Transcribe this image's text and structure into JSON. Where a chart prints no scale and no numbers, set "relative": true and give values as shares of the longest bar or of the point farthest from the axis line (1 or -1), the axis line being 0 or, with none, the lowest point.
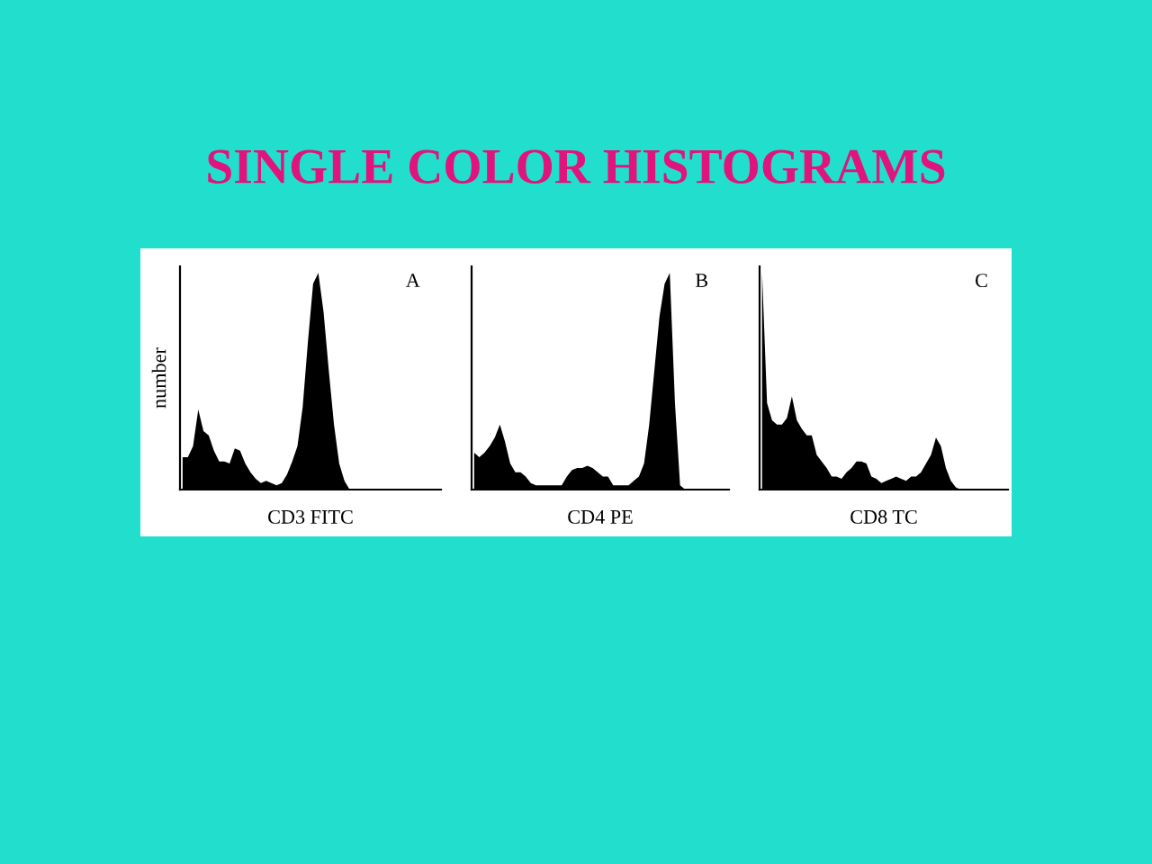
{
  "chart_data": [
    {
      "type": "area",
      "title": "SINGLE COLOR HISTOGRAMS",
      "xlabel": "CD3 FITC",
      "ylabel": "number",
      "annotations": [
        "A"
      ],
      "relative": true,
      "tick_labels": false,
      "legend": false,
      "categories": [
        null,
        null,
        null,
        null,
        null,
        null,
        null,
        null,
        null,
        null,
        null,
        null,
        null,
        null,
        null,
        null,
        null,
        null,
        null,
        null,
        null,
        null,
        null,
        null,
        null,
        null,
        null,
        null,
        null,
        null,
        null,
        null,
        null,
        null,
        null,
        null,
        null,
        null,
        null,
        null,
        null,
        null,
        null,
        null,
        null,
        null,
        null,
        null,
        null,
        null
      ],
      "series": [
        {
          "color": "#000000",
          "values": [
            0.15,
            0.15,
            0.2,
            0.37,
            0.27,
            0.25,
            0.18,
            0.13,
            0.13,
            0.12,
            0.19,
            0.18,
            0.12,
            0.08,
            0.05,
            0.03,
            0.04,
            0.03,
            0.02,
            0.03,
            0.07,
            0.13,
            0.2,
            0.38,
            0.68,
            0.95,
            1.0,
            0.82,
            0.55,
            0.3,
            0.12,
            0.04,
            0,
            0,
            0,
            0,
            0,
            0,
            0,
            0,
            0,
            0,
            0,
            0,
            0,
            0,
            0,
            0,
            0,
            0
          ]
        }
      ]
    },
    {
      "type": "area",
      "xlabel": "CD4 PE",
      "annotations": [
        "B"
      ],
      "relative": true,
      "tick_labels": false,
      "legend": false,
      "categories": [
        null,
        null,
        null,
        null,
        null,
        null,
        null,
        null,
        null,
        null,
        null,
        null,
        null,
        null,
        null,
        null,
        null,
        null,
        null,
        null,
        null,
        null,
        null,
        null,
        null,
        null,
        null,
        null,
        null,
        null,
        null,
        null,
        null,
        null,
        null,
        null,
        null,
        null,
        null,
        null,
        null,
        null,
        null,
        null,
        null,
        null,
        null,
        null,
        null,
        null
      ],
      "series": [
        {
          "color": "#000000",
          "values": [
            0.17,
            0.15,
            0.17,
            0.2,
            0.24,
            0.3,
            0.22,
            0.12,
            0.08,
            0.08,
            0.06,
            0.03,
            0.02,
            0.02,
            0.02,
            0.02,
            0.02,
            0.02,
            0.06,
            0.09,
            0.1,
            0.1,
            0.11,
            0.1,
            0.08,
            0.06,
            0.06,
            0.02,
            0.02,
            0.02,
            0.02,
            0.04,
            0.06,
            0.12,
            0.3,
            0.55,
            0.8,
            0.95,
            1.0,
            0.4,
            0.02,
            0,
            0,
            0,
            0,
            0,
            0,
            0,
            0,
            0
          ]
        }
      ]
    },
    {
      "type": "area",
      "xlabel": "CD8 TC",
      "annotations": [
        "C"
      ],
      "relative": true,
      "tick_labels": false,
      "legend": false,
      "categories": [
        null,
        null,
        null,
        null,
        null,
        null,
        null,
        null,
        null,
        null,
        null,
        null,
        null,
        null,
        null,
        null,
        null,
        null,
        null,
        null,
        null,
        null,
        null,
        null,
        null,
        null,
        null,
        null,
        null,
        null,
        null,
        null,
        null,
        null,
        null,
        null,
        null,
        null,
        null,
        null,
        null,
        null,
        null,
        null,
        null,
        null,
        null,
        null,
        null,
        null
      ],
      "series": [
        {
          "color": "#000000",
          "values": [
            1.0,
            0.4,
            0.32,
            0.3,
            0.3,
            0.33,
            0.43,
            0.32,
            0.28,
            0.25,
            0.25,
            0.16,
            0.13,
            0.1,
            0.06,
            0.06,
            0.05,
            0.08,
            0.1,
            0.13,
            0.13,
            0.12,
            0.06,
            0.05,
            0.03,
            0.04,
            0.05,
            0.06,
            0.05,
            0.04,
            0.06,
            0.06,
            0.08,
            0.12,
            0.16,
            0.24,
            0.2,
            0.1,
            0.04,
            0.01,
            0,
            0,
            0,
            0,
            0,
            0,
            0,
            0,
            0,
            0
          ]
        }
      ]
    }
  ]
}
